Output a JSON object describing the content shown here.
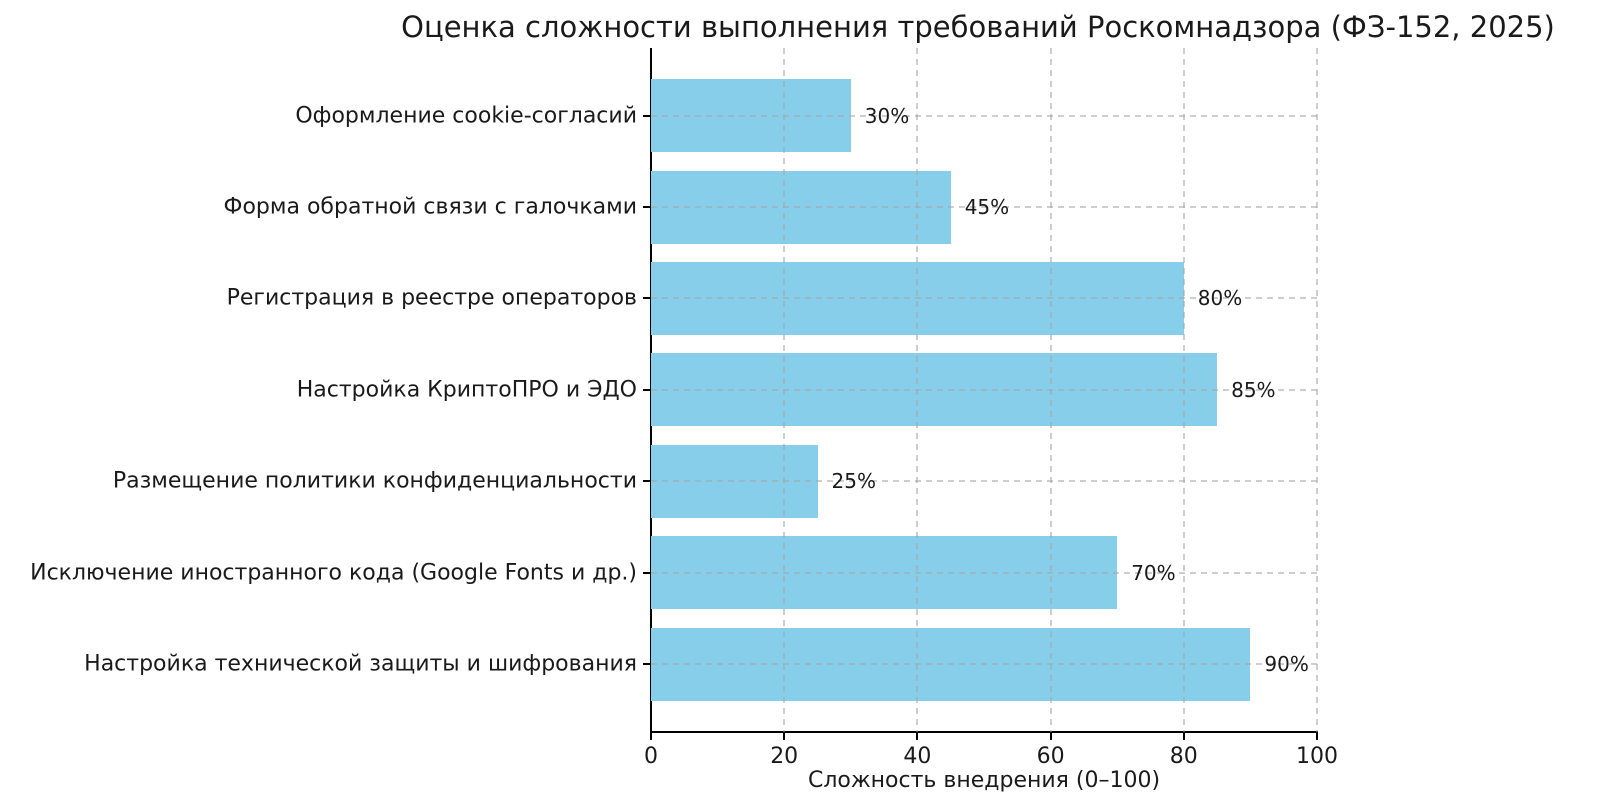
{
  "page": {
    "background": "#ffffff"
  },
  "chart_data": {
    "type": "bar",
    "orientation": "horizontal",
    "title": "Оценка сложности выполнения требований Роскомнадзора (ФЗ-152, 2025)",
    "xlabel": "Сложность внедрения (0–100)",
    "ylabel": "",
    "categories": [
      "Оформление cookie-согласий",
      "Форма обратной связи с галочками",
      "Регистрация в реестре операторов",
      "Настройка КриптоПРО и ЭДО",
      "Размещение политики конфиденциальности",
      "Исключение иностранного кода (Google Fonts и др.)",
      "Настройка технической защиты и шифрования"
    ],
    "values": [
      30,
      45,
      80,
      85,
      25,
      70,
      90
    ],
    "value_labels": [
      "30%",
      "45%",
      "80%",
      "85%",
      "25%",
      "70%",
      "90%"
    ],
    "xlim": [
      0,
      100
    ],
    "xticks": [
      0,
      20,
      40,
      60,
      80,
      100
    ],
    "xtick_labels": [
      "0",
      "20",
      "40",
      "60",
      "80",
      "100"
    ],
    "grid": true,
    "grid_style": "dashed",
    "legend": "none",
    "bar_color": "#87CEEB",
    "grid_color": "#a5a5a5",
    "axis_color": "#000000",
    "text_color": "#1a1a1a"
  }
}
